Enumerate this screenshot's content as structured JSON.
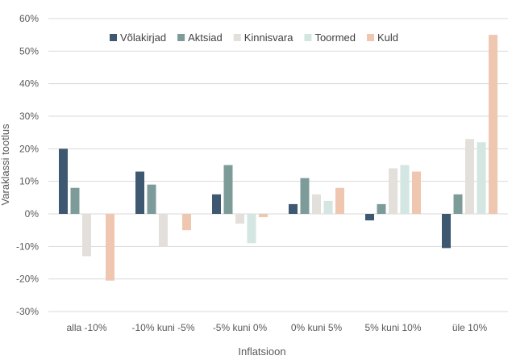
{
  "chart_data": {
    "type": "bar",
    "title": "",
    "xlabel": "Inflatsioon",
    "ylabel": "Varaklassi tootlus",
    "ylim": [
      -30,
      60
    ],
    "ytick_step": 10,
    "ytick_labels": [
      "60%",
      "50%",
      "40%",
      "30%",
      "20%",
      "10%",
      "0%",
      "-10%",
      "-20%",
      "-30%"
    ],
    "grid": true,
    "legend_position": "top",
    "categories": [
      "alla -10%",
      "-10% kuni -5%",
      "-5% kuni 0%",
      "0% kuni 5%",
      "5% kuni 10%",
      "üle 10%"
    ],
    "series": [
      {
        "name": "Võlakirjad",
        "color": "#3d5870",
        "values": [
          20,
          13,
          6,
          3,
          -2,
          -10.5
        ]
      },
      {
        "name": "Aktsiad",
        "color": "#7d9c99",
        "values": [
          8,
          9,
          15,
          11,
          3,
          6
        ]
      },
      {
        "name": "Kinnisvara",
        "color": "#e3e0db",
        "values": [
          -13,
          -10,
          -3,
          6,
          14,
          23
        ]
      },
      {
        "name": "Toormed",
        "color": "#d3e6e2",
        "values": [
          0,
          0,
          -9,
          4,
          15,
          22
        ]
      },
      {
        "name": "Kuld",
        "color": "#efc7b0",
        "values": [
          -20.5,
          -5,
          -1,
          8,
          13,
          55
        ]
      }
    ]
  }
}
